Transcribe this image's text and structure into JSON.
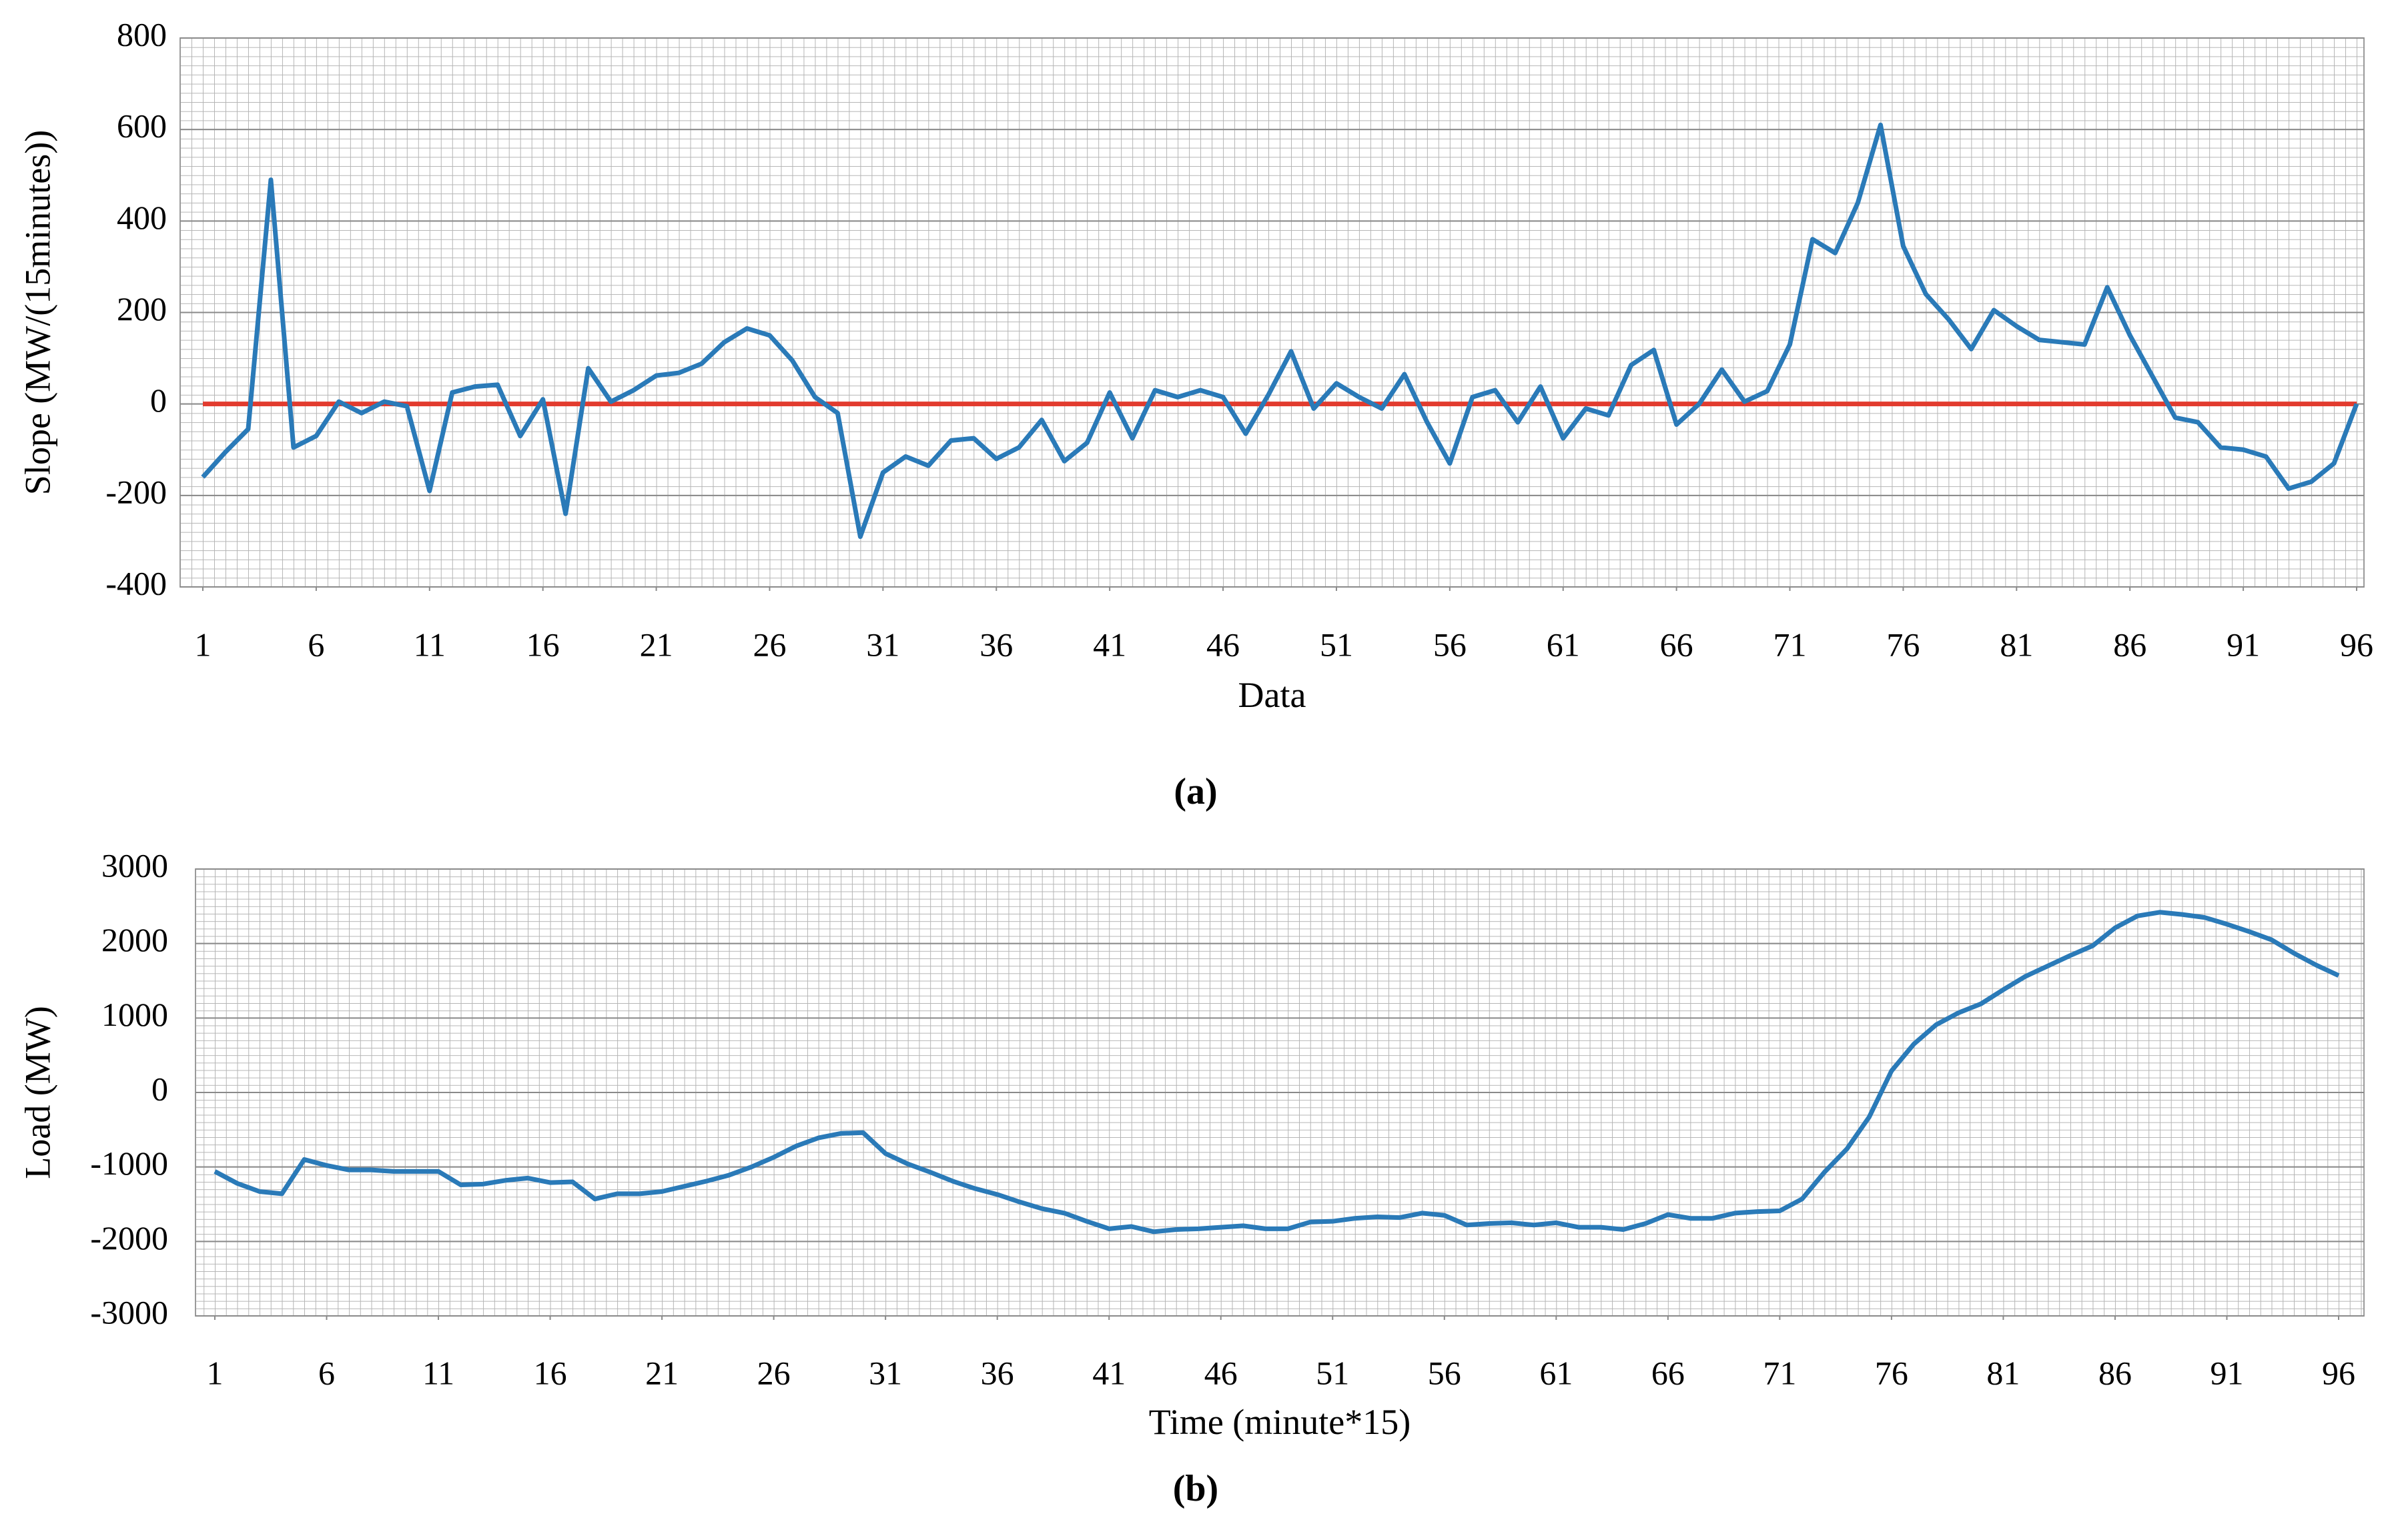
{
  "chart_data": [
    {
      "type": "line",
      "xlabel": "Data",
      "ylabel": "Slope  (MW/(15minutes))",
      "caption": "(a)",
      "x": [
        1,
        2,
        3,
        4,
        5,
        6,
        7,
        8,
        9,
        10,
        11,
        12,
        13,
        14,
        15,
        16,
        17,
        18,
        19,
        20,
        21,
        22,
        23,
        24,
        25,
        26,
        27,
        28,
        29,
        30,
        31,
        32,
        33,
        34,
        35,
        36,
        37,
        38,
        39,
        40,
        41,
        42,
        43,
        44,
        45,
        46,
        47,
        48,
        49,
        50,
        51,
        52,
        53,
        54,
        55,
        56,
        57,
        58,
        59,
        60,
        61,
        62,
        63,
        64,
        65,
        66,
        67,
        68,
        69,
        70,
        71,
        72,
        73,
        74,
        75,
        76,
        77,
        78,
        79,
        80,
        81,
        82,
        83,
        84,
        85,
        86,
        87,
        88,
        89,
        90,
        91,
        92,
        93,
        94,
        95,
        96
      ],
      "xlim": [
        1,
        96
      ],
      "xticks": [
        1,
        6,
        11,
        16,
        21,
        26,
        31,
        36,
        41,
        46,
        51,
        56,
        61,
        66,
        71,
        76,
        81,
        86,
        91,
        96
      ],
      "ylim": [
        -400,
        800
      ],
      "yticks": [
        -400,
        -200,
        0,
        200,
        400,
        600,
        800
      ],
      "grid": true,
      "hline": {
        "value": 0,
        "color": "#e23b2e"
      },
      "series": [
        {
          "color": "#2a7ab8",
          "values": [
            -160,
            -105,
            -55,
            490,
            -95,
            -70,
            5,
            -20,
            5,
            -5,
            -190,
            25,
            38,
            42,
            -70,
            10,
            -240,
            78,
            5,
            30,
            62,
            68,
            88,
            135,
            165,
            150,
            95,
            15,
            -20,
            -290,
            -150,
            -115,
            -135,
            -80,
            -75,
            -120,
            -95,
            -35,
            -125,
            -85,
            25,
            -75,
            30,
            15,
            30,
            15,
            -65,
            20,
            115,
            -10,
            45,
            15,
            -10,
            65,
            -40,
            -130,
            15,
            30,
            -40,
            38,
            -75,
            -10,
            -25,
            85,
            118,
            -45,
            0,
            75,
            5,
            28,
            130,
            360,
            330,
            440,
            610,
            345,
            240,
            185,
            120,
            205,
            170,
            140,
            135,
            130,
            255,
            150,
            60,
            -30,
            -40,
            -95,
            -100,
            -115,
            -185,
            -170,
            -130,
            0
          ]
        }
      ]
    },
    {
      "type": "line",
      "xlabel": "Time (minute*15)",
      "ylabel": "Load (MW)",
      "caption": "(b)",
      "x": [
        1,
        2,
        3,
        4,
        5,
        6,
        7,
        8,
        9,
        10,
        11,
        12,
        13,
        14,
        15,
        16,
        17,
        18,
        19,
        20,
        21,
        22,
        23,
        24,
        25,
        26,
        27,
        28,
        29,
        30,
        31,
        32,
        33,
        34,
        35,
        36,
        37,
        38,
        39,
        40,
        41,
        42,
        43,
        44,
        45,
        46,
        47,
        48,
        49,
        50,
        51,
        52,
        53,
        54,
        55,
        56,
        57,
        58,
        59,
        60,
        61,
        62,
        63,
        64,
        65,
        66,
        67,
        68,
        69,
        70,
        71,
        72,
        73,
        74,
        75,
        76,
        77,
        78,
        79,
        80,
        81,
        82,
        83,
        84,
        85,
        86,
        87,
        88,
        89,
        90,
        91,
        92,
        93,
        94,
        95,
        96
      ],
      "xlim": [
        1,
        96
      ],
      "xticks": [
        1,
        6,
        11,
        16,
        21,
        26,
        31,
        36,
        41,
        46,
        51,
        56,
        61,
        66,
        71,
        76,
        81,
        86,
        91,
        96
      ],
      "ylim": [
        -3000,
        3000
      ],
      "yticks": [
        -3000,
        -2000,
        -1000,
        0,
        1000,
        2000,
        3000
      ],
      "grid": true,
      "series": [
        {
          "color": "#2a7ab8",
          "values": [
            -1060,
            -1220,
            -1330,
            -1360,
            -900,
            -980,
            -1040,
            -1040,
            -1060,
            -1060,
            -1060,
            -1240,
            -1230,
            -1180,
            -1150,
            -1210,
            -1200,
            -1430,
            -1360,
            -1360,
            -1330,
            -1260,
            -1190,
            -1110,
            -1000,
            -870,
            -720,
            -610,
            -550,
            -540,
            -820,
            -960,
            -1070,
            -1190,
            -1290,
            -1370,
            -1470,
            -1560,
            -1620,
            -1730,
            -1830,
            -1800,
            -1870,
            -1840,
            -1830,
            -1810,
            -1790,
            -1830,
            -1830,
            -1740,
            -1730,
            -1690,
            -1670,
            -1680,
            -1620,
            -1650,
            -1780,
            -1760,
            -1750,
            -1780,
            -1750,
            -1810,
            -1810,
            -1840,
            -1760,
            -1640,
            -1690,
            -1690,
            -1620,
            -1600,
            -1590,
            -1430,
            -1070,
            -760,
            -330,
            290,
            650,
            910,
            1070,
            1190,
            1380,
            1560,
            1700,
            1840,
            1970,
            2210,
            2370,
            2420,
            2390,
            2350,
            2260,
            2160,
            2050,
            1870,
            1710,
            1570
          ]
        }
      ]
    }
  ]
}
